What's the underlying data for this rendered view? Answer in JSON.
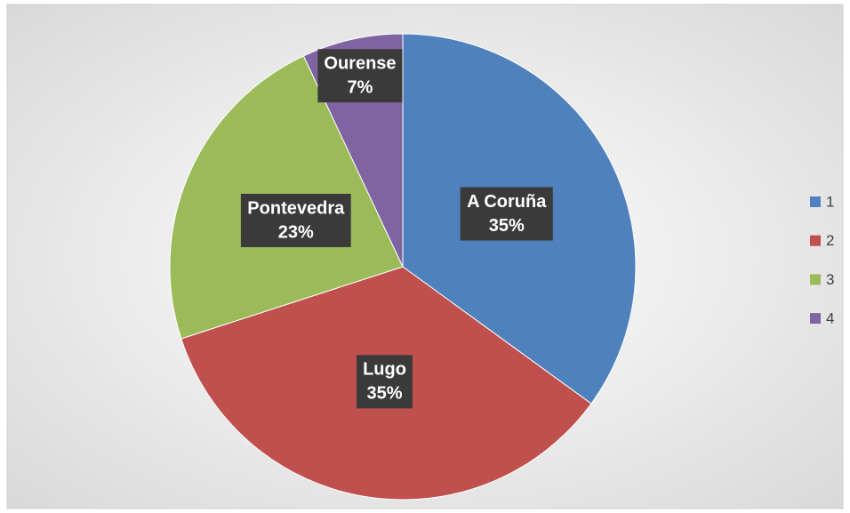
{
  "chart_data": {
    "type": "pie",
    "categories": [
      "A Coruña",
      "Lugo",
      "Pontevedra",
      "Ourense"
    ],
    "values": [
      35,
      35,
      23,
      7
    ],
    "value_labels": [
      "35%",
      "35%",
      "23%",
      "7%"
    ],
    "colors": [
      "#4f81bd",
      "#c0504d",
      "#9bbb59",
      "#8064a2"
    ],
    "legend": [
      "1",
      "2",
      "3",
      "4"
    ],
    "legend_position": "right"
  }
}
